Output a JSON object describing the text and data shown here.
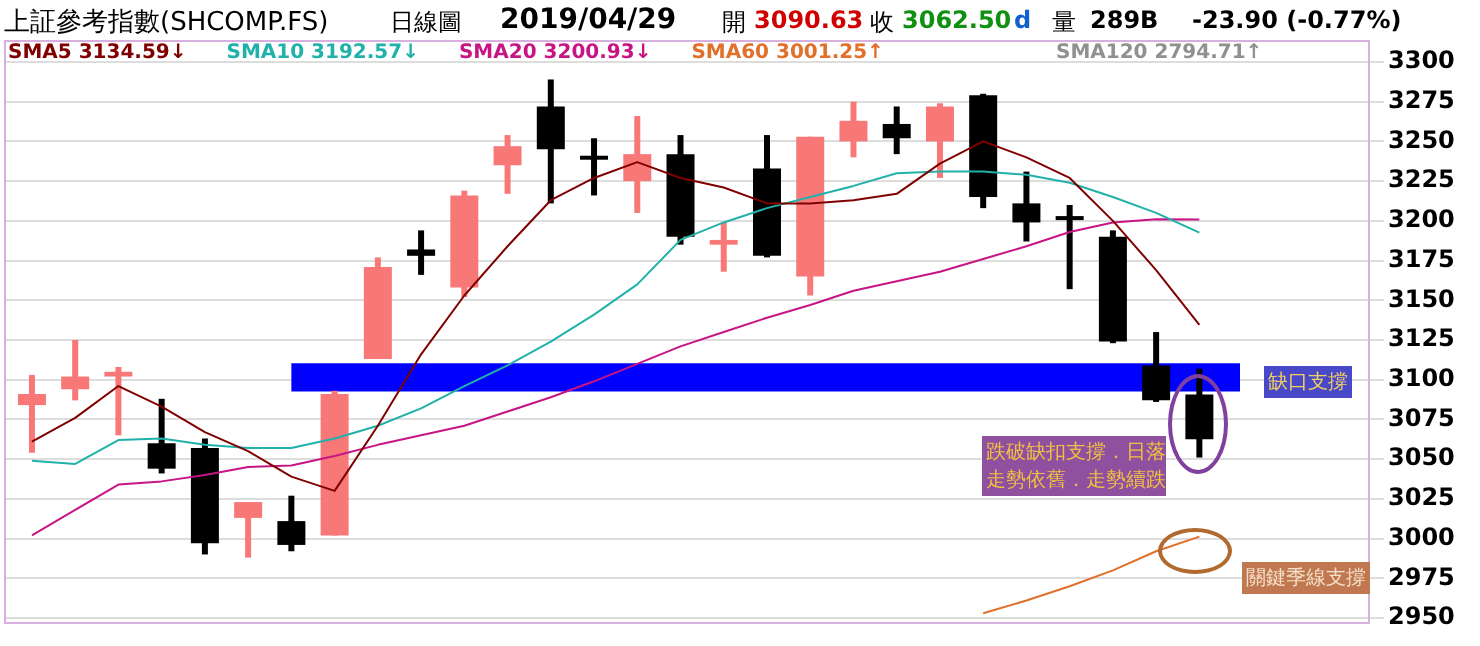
{
  "chart_data": {
    "type": "candlestick",
    "title": "上証參考指數(SHCOMP.FS)",
    "subtitle": "日線圖",
    "categories": [
      null,
      null,
      null,
      null,
      null,
      null,
      null,
      null,
      null,
      null,
      null,
      null,
      null,
      null,
      null,
      null,
      null,
      null,
      null,
      null,
      null,
      null,
      null,
      null,
      null,
      null,
      null,
      null
    ],
    "ohlc": [
      [
        3084,
        3103,
        3054,
        3091
      ],
      [
        3094,
        3125,
        3087,
        3102
      ],
      [
        3102,
        3108,
        3065,
        3105
      ],
      [
        3060,
        3088,
        3041,
        3044
      ],
      [
        3057,
        3063,
        2990,
        2997
      ],
      [
        3013,
        3023,
        2988,
        3023
      ],
      [
        3011,
        3027,
        2992,
        2996
      ],
      [
        3002,
        3093,
        3002,
        3091
      ],
      [
        3113,
        3177,
        3113,
        3171
      ],
      [
        3182,
        3194,
        3166,
        3178
      ],
      [
        3158,
        3219,
        3152,
        3216
      ],
      [
        3235,
        3254,
        3217,
        3247
      ],
      [
        3272,
        3289,
        3211,
        3245
      ],
      [
        3241,
        3252,
        3216,
        3240
      ],
      [
        3225,
        3266,
        3205,
        3242
      ],
      [
        3242,
        3254,
        3185,
        3190
      ],
      [
        3185,
        3199,
        3168,
        3188
      ],
      [
        3233,
        3254,
        3177,
        3178
      ],
      [
        3165,
        3253,
        3153,
        3253
      ],
      [
        3250,
        3275,
        3240,
        3263
      ],
      [
        3261,
        3272,
        3242,
        3252
      ],
      [
        3250,
        3274,
        3227,
        3272
      ],
      [
        3279,
        3280,
        3208,
        3215
      ],
      [
        3211,
        3231,
        3187,
        3199
      ],
      [
        3203,
        3210,
        3157,
        3202
      ],
      [
        3190,
        3194,
        3123,
        3124
      ],
      [
        3109,
        3130,
        3086,
        3087
      ],
      [
        3090.63,
        3107,
        3051,
        3062.5
      ]
    ],
    "colors": [
      "#f87878",
      "#f87878",
      "#f87878",
      "#000000",
      "#000000",
      "#f87878",
      "#000000",
      "#f87878",
      "#f87878",
      "#000000",
      "#f87878",
      "#f87878",
      "#000000",
      "#000000",
      "#f87878",
      "#000000",
      "#f87878",
      "#000000",
      "#f87878",
      "#f87878",
      "#000000",
      "#f87878",
      "#000000",
      "#000000",
      "#000000",
      "#000000",
      "#000000",
      "#000000"
    ],
    "series": [
      {
        "type": "line",
        "name": "SMA5 3134.59↓",
        "color": "#800000",
        "values": [
          3061,
          3076,
          3096,
          3083,
          3067,
          3055,
          3039,
          3030,
          3071,
          3116,
          3153,
          3184,
          3213,
          3227,
          3237,
          3227,
          3221,
          3211,
          3211,
          3213,
          3217,
          3236,
          3250,
          3240,
          3227,
          3200,
          3169,
          3134.59
        ]
      },
      {
        "type": "line",
        "name": "SMA10 3192.57↓",
        "color": "#20b2aa",
        "values": [
          3049,
          3047,
          3062,
          3063,
          3059,
          3057,
          3057,
          3063,
          3071,
          3082,
          3096,
          3109,
          3124,
          3141,
          3160,
          3188,
          3199,
          3208,
          3215,
          3222,
          3230,
          3231,
          3231,
          3229,
          3224,
          3215,
          3205,
          3192.57
        ]
      },
      {
        "type": "line",
        "name": "SMA20 3200.93↓",
        "color": "#c71585",
        "values": [
          3002,
          3018,
          3034,
          3036,
          3040,
          3045,
          3046,
          3052,
          3059,
          3065,
          3071,
          3080,
          3089,
          3099,
          3110,
          3121,
          3130,
          3139,
          3147,
          3156,
          3162,
          3168,
          3176,
          3184,
          3193,
          3199,
          3201,
          3200.93
        ]
      },
      {
        "type": "line",
        "name": "SMA60 3001.25↑",
        "color": "#e0702a",
        "values": [
          null,
          null,
          null,
          null,
          null,
          null,
          null,
          null,
          null,
          null,
          null,
          null,
          null,
          null,
          null,
          null,
          null,
          null,
          null,
          null,
          null,
          null,
          2953,
          2961,
          2970,
          2980,
          2992,
          3001.25
        ]
      }
    ],
    "ylim": [
      2950,
      3300
    ],
    "yticks": [
      2950,
      2975,
      3000,
      3025,
      3050,
      3075,
      3100,
      3125,
      3150,
      3175,
      3200,
      3225,
      3250,
      3275,
      3300
    ],
    "grid": "y",
    "legend": "top",
    "tick_labels": "y",
    "bands": [
      {
        "axis": "y",
        "from": 3092.6,
        "to": 3110.3,
        "label": "缺口支撐",
        "color": "#0000ff"
      }
    ],
    "annotations": [
      "2019/04/29",
      "開",
      "3090.63",
      "收",
      "3062.50",
      "d",
      "量",
      "289B",
      "-23.90 (-0.77%)",
      "SMA120 2794.71↑",
      "跌破缺扣支撐．日落",
      "走勢依舊．走勢續跌",
      "關鍵季線支撐"
    ]
  }
}
